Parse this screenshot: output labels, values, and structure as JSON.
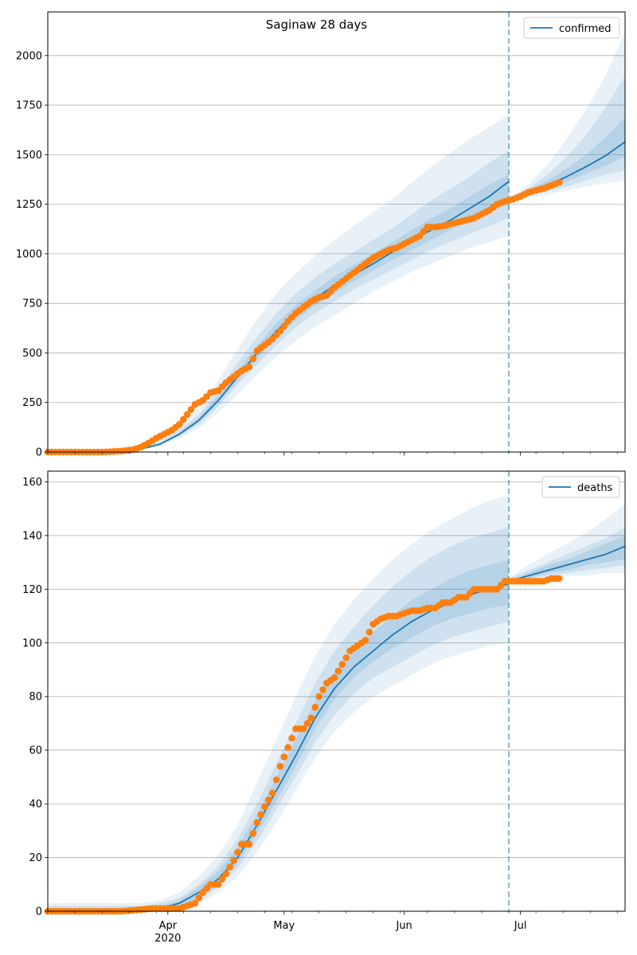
{
  "chart_data": [
    {
      "type": "line",
      "title": "Saginaw 28 days",
      "xlabel": "",
      "ylabel": "",
      "x_range": [
        "2020-03-01",
        "2020-07-28"
      ],
      "ylim": [
        0,
        2220
      ],
      "yticks": [
        0,
        250,
        500,
        750,
        1000,
        1250,
        1500,
        1750,
        2000
      ],
      "grid": "horizontal",
      "legend": {
        "position": "top-right",
        "entries": [
          "confirmed"
        ]
      },
      "forecast_start": "2020-06-28",
      "colors": {
        "line": "#1f77b4",
        "observed": "#ff7f0e",
        "band": "#1f77b4"
      },
      "model": {
        "name": "confirmed",
        "x": [
          "2020-03-01",
          "2020-03-15",
          "2020-03-20",
          "2020-03-25",
          "2020-03-30",
          "2020-04-04",
          "2020-04-09",
          "2020-04-14",
          "2020-04-19",
          "2020-04-24",
          "2020-04-29",
          "2020-05-04",
          "2020-05-09",
          "2020-05-14",
          "2020-05-19",
          "2020-05-24",
          "2020-05-29",
          "2020-06-03",
          "2020-06-08",
          "2020-06-13",
          "2020-06-18",
          "2020-06-23",
          "2020-06-28"
        ],
        "values": [
          0,
          0,
          5,
          15,
          40,
          90,
          160,
          260,
          380,
          500,
          610,
          700,
          775,
          840,
          895,
          950,
          1010,
          1070,
          1120,
          1170,
          1230,
          1290,
          1365
        ],
        "bands": [
          {
            "lower": [
              0,
              0,
              3,
              10,
              30,
              70,
              120,
              200,
              290,
              390,
              480,
              560,
              630,
              690,
              750,
              810,
              860,
              910,
              950,
              990,
              1030,
              1060,
              1090
            ],
            "upper": [
              0,
              0,
              8,
              25,
              60,
              130,
              220,
              360,
              520,
              670,
              800,
              900,
              990,
              1070,
              1140,
              1210,
              1280,
              1360,
              1440,
              1510,
              1580,
              1640,
              1700
            ]
          },
          {
            "lower": [
              0,
              0,
              4,
              12,
              35,
              80,
              140,
              230,
              340,
              440,
              540,
              630,
              700,
              760,
              820,
              870,
              920,
              970,
              1020,
              1060,
              1100,
              1140,
              1180
            ],
            "upper": [
              0,
              0,
              7,
              20,
              50,
              110,
              190,
              310,
              450,
              580,
              700,
              800,
              880,
              950,
              1010,
              1070,
              1130,
              1200,
              1270,
              1330,
              1390,
              1460,
              1520
            ]
          },
          {
            "lower": [
              0,
              0,
              4,
              13,
              37,
              85,
              150,
              245,
              360,
              470,
              580,
              665,
              740,
              800,
              860,
              915,
              970,
              1020,
              1070,
              1120,
              1170,
              1210,
              1250
            ],
            "upper": [
              0,
              0,
              6,
              17,
              44,
              100,
              175,
              285,
              410,
              535,
              650,
              740,
              815,
              885,
              945,
              1000,
              1060,
              1120,
              1180,
              1230,
              1290,
              1350,
              1400
            ]
          }
        ]
      },
      "forecast": {
        "x": [
          "2020-06-28",
          "2020-07-03",
          "2020-07-08",
          "2020-07-13",
          "2020-07-18",
          "2020-07-23",
          "2020-07-28"
        ],
        "values": [
          1270,
          1310,
          1345,
          1390,
          1440,
          1495,
          1565
        ],
        "bands": [
          {
            "lower": [
              1260,
              1280,
              1300,
              1320,
              1340,
              1355,
              1370
            ],
            "upper": [
              1280,
              1350,
              1450,
              1580,
              1730,
              1900,
              2120
            ]
          },
          {
            "lower": [
              1263,
              1290,
              1315,
              1340,
              1370,
              1400,
              1420
            ],
            "upper": [
              1277,
              1330,
              1400,
              1490,
              1600,
              1740,
              1900
            ]
          },
          {
            "lower": [
              1265,
              1298,
              1330,
              1365,
              1405,
              1445,
              1490
            ],
            "upper": [
              1275,
              1320,
              1370,
              1430,
              1500,
              1590,
              1690
            ]
          }
        ]
      },
      "observed": {
        "x": [
          "2020-03-01",
          "2020-03-05",
          "2020-03-10",
          "2020-03-15",
          "2020-03-20",
          "2020-03-23",
          "2020-03-25",
          "2020-03-27",
          "2020-03-29",
          "2020-03-31",
          "2020-04-02",
          "2020-04-04",
          "2020-04-06",
          "2020-04-08",
          "2020-04-10",
          "2020-04-12",
          "2020-04-14",
          "2020-04-16",
          "2020-04-18",
          "2020-04-20",
          "2020-04-22",
          "2020-04-24",
          "2020-04-26",
          "2020-04-28",
          "2020-04-30",
          "2020-05-02",
          "2020-05-04",
          "2020-05-06",
          "2020-05-08",
          "2020-05-10",
          "2020-05-12",
          "2020-05-14",
          "2020-05-16",
          "2020-05-18",
          "2020-05-20",
          "2020-05-22",
          "2020-05-24",
          "2020-05-26",
          "2020-05-28",
          "2020-05-30",
          "2020-06-01",
          "2020-06-03",
          "2020-06-05",
          "2020-06-07",
          "2020-06-09",
          "2020-06-11",
          "2020-06-13",
          "2020-06-15",
          "2020-06-17",
          "2020-06-19",
          "2020-06-21",
          "2020-06-23",
          "2020-06-25",
          "2020-06-27",
          "2020-06-29",
          "2020-07-01",
          "2020-07-03",
          "2020-07-05",
          "2020-07-07",
          "2020-07-09",
          "2020-07-11"
        ],
        "values": [
          0,
          0,
          0,
          0,
          5,
          12,
          25,
          45,
          70,
          90,
          110,
          140,
          190,
          240,
          260,
          300,
          310,
          350,
          380,
          410,
          430,
          510,
          540,
          570,
          610,
          660,
          700,
          730,
          760,
          780,
          790,
          830,
          860,
          890,
          920,
          950,
          980,
          1000,
          1020,
          1030,
          1050,
          1070,
          1090,
          1135,
          1135,
          1140,
          1150,
          1160,
          1170,
          1180,
          1200,
          1220,
          1250,
          1265,
          1275,
          1290,
          1310,
          1320,
          1330,
          1345,
          1360
        ]
      }
    },
    {
      "type": "line",
      "title": "",
      "xlabel": "",
      "ylabel": "",
      "x_range": [
        "2020-03-01",
        "2020-07-28"
      ],
      "ylim": [
        0,
        164
      ],
      "yticks": [
        0,
        20,
        40,
        60,
        80,
        100,
        120,
        140,
        160
      ],
      "xtick_labels": [
        "Apr\n2020",
        "May",
        "Jun",
        "Jul"
      ],
      "grid": "horizontal",
      "legend": {
        "position": "top-right",
        "entries": [
          "deaths"
        ]
      },
      "forecast_start": "2020-06-28",
      "colors": {
        "line": "#1f77b4",
        "observed": "#ff7f0e",
        "band": "#1f77b4"
      },
      "model": {
        "name": "deaths",
        "x": [
          "2020-03-01",
          "2020-03-25",
          "2020-03-30",
          "2020-04-04",
          "2020-04-09",
          "2020-04-14",
          "2020-04-19",
          "2020-04-24",
          "2020-04-29",
          "2020-05-04",
          "2020-05-09",
          "2020-05-14",
          "2020-05-19",
          "2020-05-24",
          "2020-05-29",
          "2020-06-03",
          "2020-06-08",
          "2020-06-13",
          "2020-06-18",
          "2020-06-23",
          "2020-06-28"
        ],
        "values": [
          0,
          0,
          1,
          3,
          7,
          12,
          20,
          32,
          45,
          58,
          72,
          83,
          91,
          97,
          103,
          108,
          112,
          115,
          118,
          120,
          122
        ],
        "bands": [
          {
            "lower": [
              0,
              0,
              0,
              1,
              3,
              7,
              13,
              22,
              33,
              45,
              57,
              67,
              74,
              80,
              84,
              88,
              92,
              95,
              97,
              99,
              100
            ],
            "upper": [
              3,
              3,
              4,
              7,
              13,
              21,
              32,
              48,
              64,
              80,
              95,
              107,
              116,
              124,
              131,
              137,
              142,
              146,
              150,
              153,
              155
            ]
          },
          {
            "lower": [
              0,
              0,
              0,
              2,
              4,
              9,
              16,
              26,
              38,
              50,
              63,
              73,
              81,
              87,
              91,
              95,
              99,
              102,
              104,
              106,
              108
            ],
            "upper": [
              2,
              2,
              3,
              5,
              10,
              17,
              27,
              40,
              55,
              70,
              85,
              97,
              106,
              114,
              121,
              127,
              132,
              136,
              139,
              141,
              143
            ]
          },
          {
            "lower": [
              0,
              0,
              1,
              2,
              5,
              10,
              18,
              29,
              41,
              54,
              68,
              79,
              87,
              93,
              98,
              102,
              106,
              109,
              111,
              113,
              114
            ],
            "upper": [
              1,
              1,
              2,
              4,
              9,
              15,
              24,
              36,
              50,
              64,
              78,
              89,
              97,
              104,
              110,
              116,
              120,
              124,
              127,
              129,
              131
            ]
          }
        ]
      },
      "forecast": {
        "x": [
          "2020-06-28",
          "2020-07-03",
          "2020-07-08",
          "2020-07-13",
          "2020-07-18",
          "2020-07-23",
          "2020-07-28"
        ],
        "values": [
          123,
          125,
          127,
          129,
          131,
          133,
          136
        ],
        "bands": [
          {
            "lower": [
              122,
              123,
              124,
              125,
              125,
              126,
              126
            ],
            "upper": [
              124,
              129,
              133,
              137,
              141,
              146,
              152
            ]
          },
          {
            "lower": [
              122,
              124,
              125,
              126,
              127,
              128,
              129
            ],
            "upper": [
              124,
              127,
              130,
              133,
              136,
              139,
              143
            ]
          },
          {
            "lower": [
              123,
              124,
              126,
              127,
              129,
              130,
              131
            ],
            "upper": [
              123,
              126,
              129,
              131,
              134,
              137,
              140
            ]
          }
        ]
      },
      "observed": {
        "x": [
          "2020-03-01",
          "2020-03-10",
          "2020-03-20",
          "2020-03-28",
          "2020-04-04",
          "2020-04-08",
          "2020-04-10",
          "2020-04-12",
          "2020-04-14",
          "2020-04-16",
          "2020-04-18",
          "2020-04-20",
          "2020-04-22",
          "2020-04-24",
          "2020-04-26",
          "2020-04-28",
          "2020-04-30",
          "2020-05-02",
          "2020-05-04",
          "2020-05-06",
          "2020-05-08",
          "2020-05-10",
          "2020-05-12",
          "2020-05-14",
          "2020-05-16",
          "2020-05-18",
          "2020-05-20",
          "2020-05-22",
          "2020-05-24",
          "2020-05-26",
          "2020-05-28",
          "2020-05-30",
          "2020-06-01",
          "2020-06-03",
          "2020-06-05",
          "2020-06-07",
          "2020-06-09",
          "2020-06-11",
          "2020-06-13",
          "2020-06-15",
          "2020-06-17",
          "2020-06-19",
          "2020-06-21",
          "2020-06-23",
          "2020-06-25",
          "2020-06-27",
          "2020-06-29",
          "2020-07-01",
          "2020-07-03",
          "2020-07-05",
          "2020-07-07",
          "2020-07-09",
          "2020-07-11"
        ],
        "values": [
          0,
          0,
          0,
          1,
          1,
          3,
          7,
          10,
          10,
          14,
          19,
          25,
          25,
          33,
          39,
          44,
          54,
          61,
          68,
          68,
          72,
          80,
          85,
          87,
          92,
          97,
          99,
          101,
          107,
          109,
          110,
          110,
          111,
          112,
          112,
          113,
          113,
          115,
          115,
          117,
          117,
          120,
          120,
          120,
          120,
          123,
          123,
          123,
          123,
          123,
          123,
          124,
          124
        ]
      }
    }
  ]
}
